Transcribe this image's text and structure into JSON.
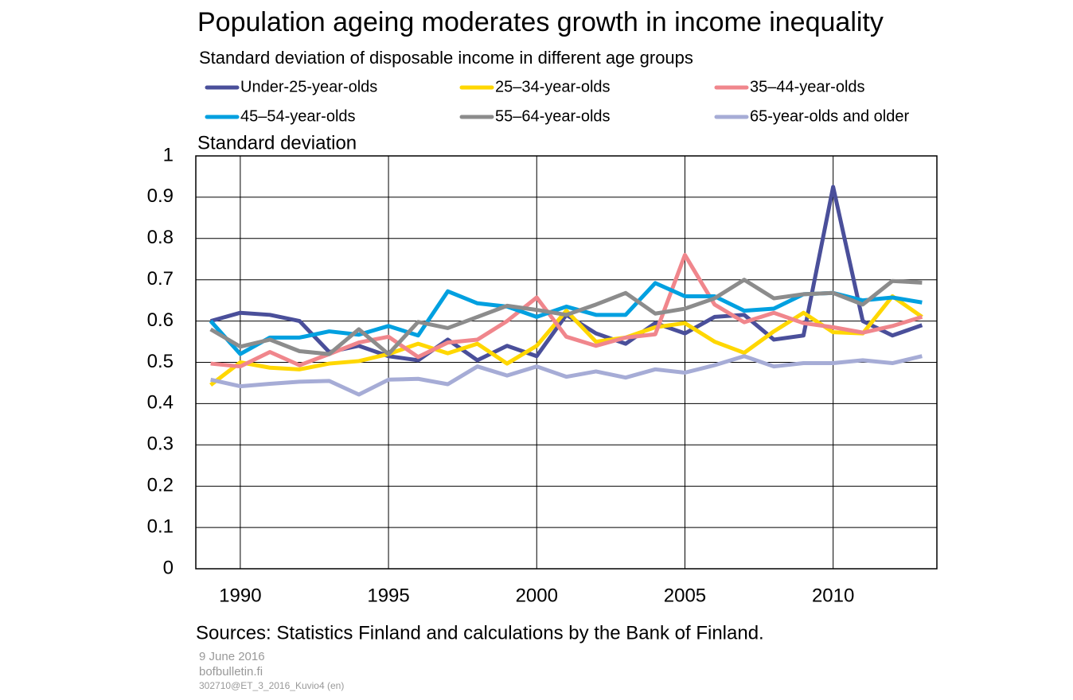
{
  "chart_data": {
    "type": "line",
    "title": "Population ageing moderates growth in income inequality",
    "subtitle": "Standard deviation of disposable income in different age groups",
    "y_label": "Standard deviation",
    "source": "Sources: Statistics Finland and calculations by the Bank of Finland.",
    "footer": [
      "9 June 2016",
      "bofbulletin.fi",
      "302710@ET_3_2016_Kuvio4  (en)"
    ],
    "x": [
      1989,
      1990,
      1991,
      1992,
      1993,
      1994,
      1995,
      1996,
      1997,
      1998,
      1999,
      2000,
      2001,
      2002,
      2003,
      2004,
      2005,
      2006,
      2007,
      2008,
      2009,
      2010,
      2011,
      2012,
      2013
    ],
    "xlim": [
      1988.5,
      2013.5
    ],
    "xticks": [
      1990,
      1995,
      2000,
      2005,
      2010
    ],
    "ylim": [
      0,
      1
    ],
    "yticks": [
      0,
      0.1,
      0.2,
      0.3,
      0.4,
      0.5,
      0.6,
      0.7,
      0.8,
      0.9,
      1
    ],
    "grid": true,
    "series": [
      {
        "name": "Under-25-year-olds",
        "color": "#4a4f9a",
        "values": [
          0.6,
          0.62,
          0.615,
          0.6,
          0.525,
          0.54,
          0.515,
          0.505,
          0.555,
          0.505,
          0.54,
          0.515,
          0.615,
          0.57,
          0.545,
          0.595,
          0.57,
          0.61,
          0.615,
          0.555,
          0.565,
          0.925,
          0.6,
          0.565,
          0.59
        ]
      },
      {
        "name": "25–34-year-olds",
        "color": "#ffd700",
        "values": [
          0.445,
          0.5,
          0.487,
          0.483,
          0.497,
          0.503,
          0.52,
          0.545,
          0.522,
          0.545,
          0.497,
          0.54,
          0.625,
          0.55,
          0.56,
          0.585,
          0.595,
          0.55,
          0.523,
          0.575,
          0.62,
          0.573,
          0.57,
          0.66,
          0.61
        ]
      },
      {
        "name": "35–44-year-olds",
        "color": "#f0868c",
        "values": [
          0.497,
          0.49,
          0.525,
          0.493,
          0.52,
          0.548,
          0.562,
          0.513,
          0.548,
          0.555,
          0.6,
          0.657,
          0.562,
          0.54,
          0.56,
          0.568,
          0.76,
          0.64,
          0.597,
          0.62,
          0.595,
          0.585,
          0.572,
          0.588,
          0.61
        ]
      },
      {
        "name": "45–54-year-olds",
        "color": "#00a0e0",
        "values": [
          0.6,
          0.52,
          0.56,
          0.56,
          0.575,
          0.567,
          0.588,
          0.565,
          0.672,
          0.643,
          0.635,
          0.61,
          0.635,
          0.615,
          0.615,
          0.692,
          0.66,
          0.66,
          0.625,
          0.63,
          0.665,
          0.668,
          0.65,
          0.657,
          0.645
        ]
      },
      {
        "name": "55–64-year-olds",
        "color": "#8c8c8c",
        "values": [
          0.58,
          0.538,
          0.555,
          0.527,
          0.52,
          0.58,
          0.52,
          0.598,
          0.583,
          0.61,
          0.637,
          0.627,
          0.615,
          0.64,
          0.668,
          0.618,
          0.63,
          0.655,
          0.7,
          0.655,
          0.665,
          0.668,
          0.64,
          0.697,
          0.693
        ]
      },
      {
        "name": "65-year-olds and older",
        "color": "#a6acd6",
        "values": [
          0.458,
          0.442,
          0.448,
          0.453,
          0.455,
          0.422,
          0.458,
          0.46,
          0.447,
          0.49,
          0.468,
          0.49,
          0.465,
          0.478,
          0.463,
          0.483,
          0.475,
          0.493,
          0.515,
          0.49,
          0.498,
          0.498,
          0.505,
          0.498,
          0.515
        ]
      }
    ]
  }
}
